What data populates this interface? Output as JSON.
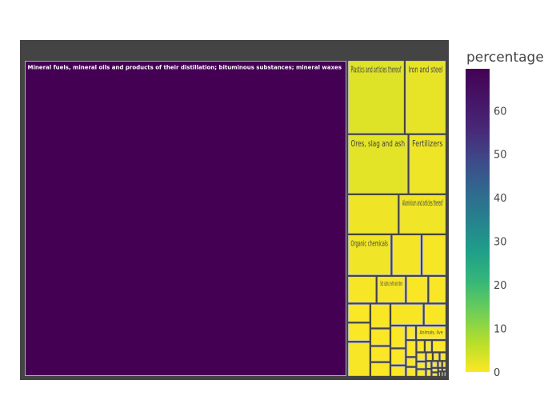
{
  "chart_data": {
    "type": "treemap",
    "title": "",
    "colorscale": "viridis",
    "colorbar": {
      "title": "percentage",
      "range": [
        0,
        69.6
      ],
      "ticks": [
        0,
        10,
        20,
        30,
        40,
        50,
        60
      ]
    },
    "colors": {
      "background": "#444444",
      "border": "#cccccc",
      "paper": "#ffffff"
    },
    "items": [
      {
        "label": "Mineral fuels, mineral oils and products of their distillation; bituminous substances; mineral waxes",
        "value": 69.6
      },
      {
        "label": "Plastics and articles thereof",
        "value": 2.9
      },
      {
        "label": "Iron and steel",
        "value": 2.1
      },
      {
        "label": "Ores, slag and ash",
        "value": 2.5
      },
      {
        "label": "Fertilizers",
        "value": 1.55
      },
      {
        "label": "",
        "value": 1.4
      },
      {
        "label": "Aluminium and articles thereof",
        "value": 1.3
      },
      {
        "label": "Organic chemicals",
        "value": 1.25
      },
      {
        "label": "",
        "value": 0.85
      },
      {
        "label": "",
        "value": 0.7
      },
      {
        "label": "",
        "value": 0.55
      },
      {
        "label": "Salt; sulphur; earths and stone",
        "value": 0.55
      },
      {
        "label": "",
        "value": 0.42
      },
      {
        "label": "",
        "value": 0.34
      },
      {
        "label": "",
        "value": 0.3
      },
      {
        "label": "",
        "value": 0.3
      },
      {
        "label": "",
        "value": 0.55
      },
      {
        "label": "",
        "value": 0.34
      },
      {
        "label": "",
        "value": 0.24
      },
      {
        "label": "",
        "value": 0.22
      },
      {
        "label": "",
        "value": 0.2
      },
      {
        "label": "",
        "value": 0.5
      },
      {
        "label": "",
        "value": 0.34
      },
      {
        "label": "",
        "value": 0.24
      },
      {
        "label": "",
        "value": 0.18
      },
      {
        "label": "",
        "value": 0.12
      },
      {
        "label": "",
        "value": 0.1
      },
      {
        "label": "Animals, live",
        "value": 0.3
      },
      {
        "label": "",
        "value": 0.12
      },
      {
        "label": "",
        "value": 0.07
      },
      {
        "label": "",
        "value": 0.07
      },
      {
        "label": "",
        "value": 0.07
      },
      {
        "label": "",
        "value": 0.06
      },
      {
        "label": "",
        "value": 0.12
      },
      {
        "label": "",
        "value": 0.06
      },
      {
        "label": "",
        "value": 0.05
      },
      {
        "label": "",
        "value": 0.05
      },
      {
        "label": "",
        "value": 0.04
      },
      {
        "label": "",
        "value": 0.04
      },
      {
        "label": "",
        "value": 0.04
      },
      {
        "label": "",
        "value": 0.03
      },
      {
        "label": "",
        "value": 0.03
      },
      {
        "label": "",
        "value": 0.03
      },
      {
        "label": "",
        "value": 0.02
      },
      {
        "label": "",
        "value": 0.02
      },
      {
        "label": "",
        "value": 0.02
      },
      {
        "label": "",
        "value": 0.02
      },
      {
        "label": "",
        "value": 0.01
      },
      {
        "label": "",
        "value": 0.01
      },
      {
        "label": "",
        "value": 0.01
      },
      {
        "label": "",
        "value": 0.01
      },
      {
        "label": "",
        "value": 0.01
      }
    ]
  }
}
